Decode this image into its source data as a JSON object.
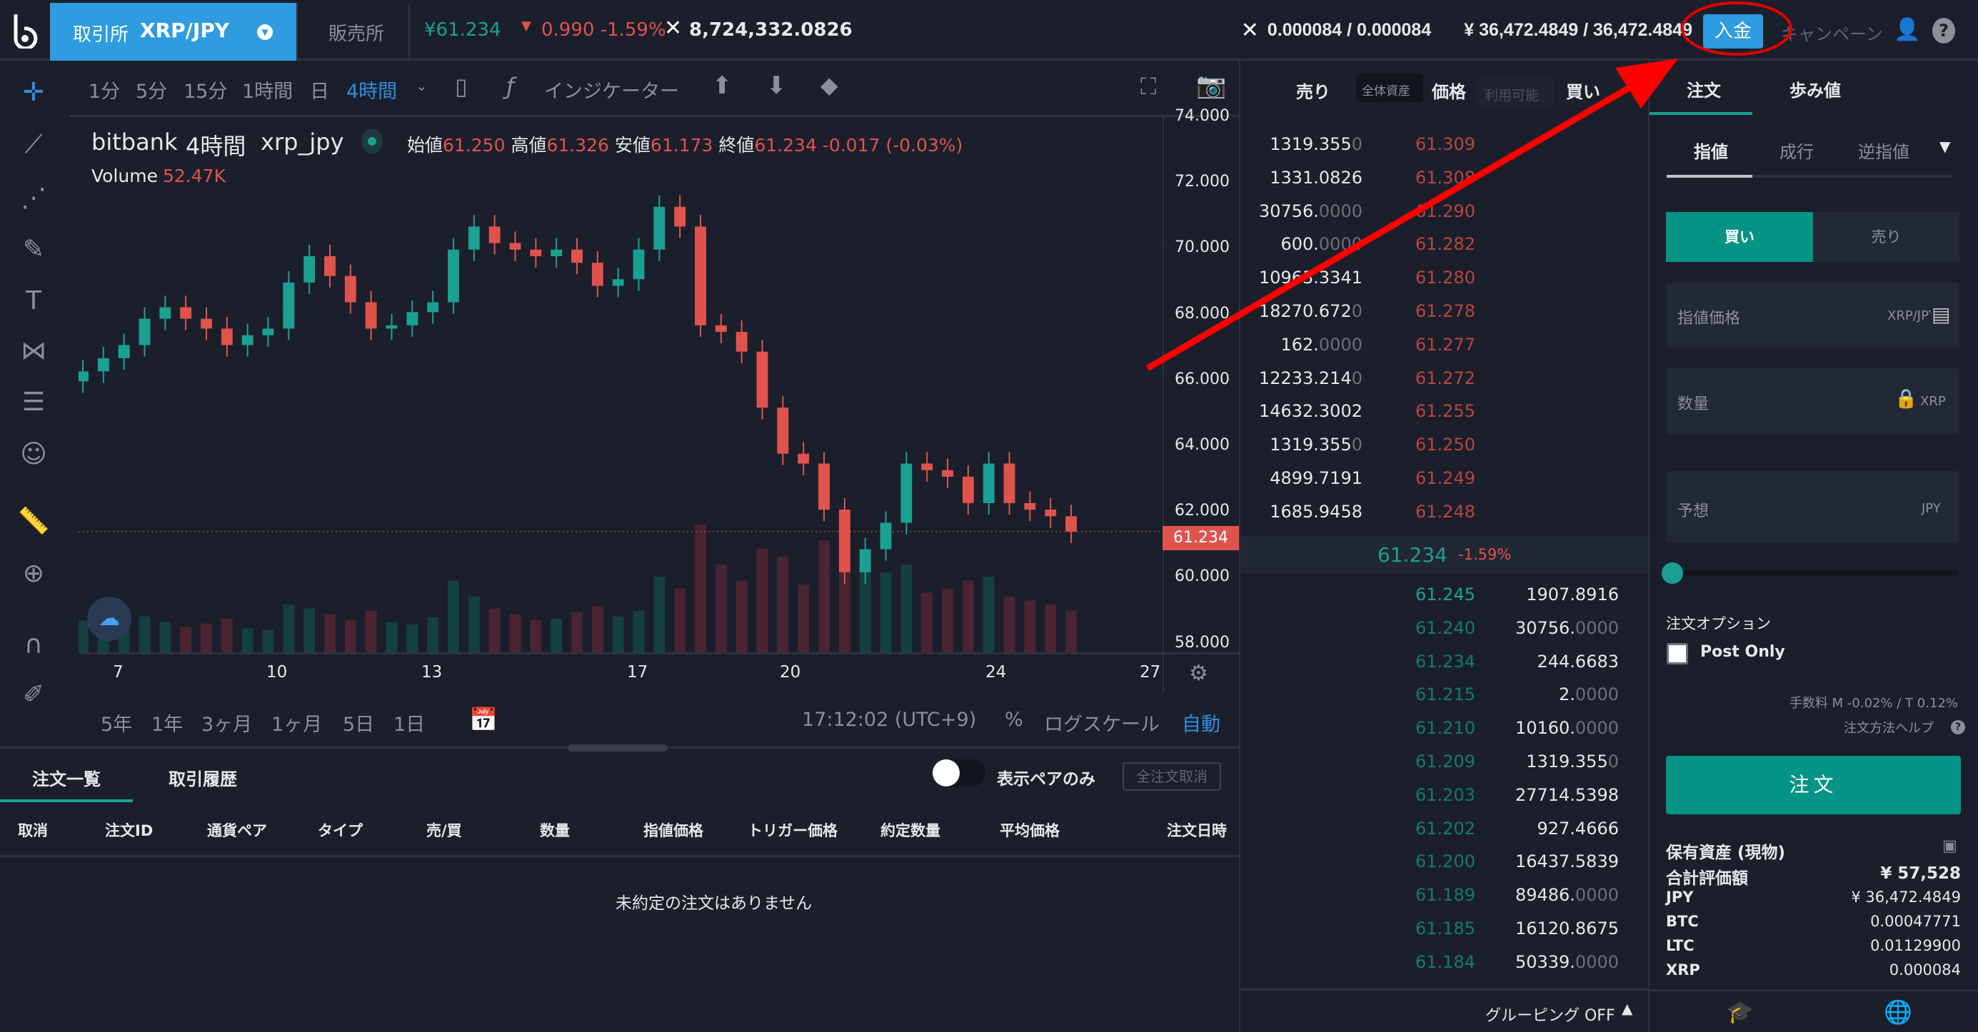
{
  "header": {
    "market_tab": "取引所",
    "pair": "XRP/JPY",
    "retail_tab": "販売所",
    "last_price": "¥61.234",
    "change": "0.990 -1.59%",
    "volume": "8,724,332.0826",
    "xrp_balance": "0.000084 / 0.000084",
    "jpy_balance": "¥ 36,472.4849 / 36,472.4849",
    "deposit_label": "入金",
    "campaign_label": "キャンペーン"
  },
  "toolbar": {
    "intervals": [
      "1分",
      "5分",
      "15分",
      "1時間",
      "日",
      "4時間"
    ],
    "active_interval": "4時間",
    "indicator_label": "インジケーター"
  },
  "chart": {
    "legend_exchange": "bitbank",
    "legend_interval": "4時間",
    "legend_symbol": "xrp_jpy",
    "open_label": "始値",
    "open": "61.250",
    "high_label": "高値",
    "high": "61.326",
    "low_label": "安値",
    "low": "61.173",
    "close_label": "終値",
    "close": "61.234",
    "change": "-0.017 (-0.03%)",
    "volume_label": "Volume",
    "volume": "52.47K",
    "price_ticks": [
      "74.000",
      "72.000",
      "70.000",
      "68.000",
      "66.000",
      "64.000",
      "62.000",
      "60.000",
      "58.000"
    ],
    "current_price_tag": "61.234",
    "date_ticks": [
      "7",
      "10",
      "13",
      "17",
      "20",
      "24",
      "27"
    ],
    "ranges": [
      "5年",
      "1年",
      "3ヶ月",
      "1ヶ月",
      "5日",
      "1日"
    ],
    "clock": "17:12:02 (UTC+9)",
    "percent_label": "%",
    "log_label": "ログスケール",
    "auto_label": "自動",
    "colors": {
      "up": "#1aa193",
      "down": "#e0534d"
    }
  },
  "chart_data": {
    "type": "candlestick",
    "ylim": [
      58,
      74
    ],
    "closes": [
      66.1,
      66.5,
      66.9,
      67.7,
      68.05,
      67.7,
      67.4,
      66.9,
      67.2,
      67.4,
      68.8,
      69.6,
      69.0,
      68.2,
      67.4,
      67.5,
      67.9,
      68.2,
      69.8,
      70.5,
      70.0,
      69.8,
      69.6,
      69.8,
      69.4,
      68.7,
      68.9,
      69.8,
      71.1,
      70.5,
      67.5,
      67.3,
      66.7,
      65.0,
      63.6,
      63.3,
      61.9,
      60.0,
      60.7,
      61.5,
      63.3,
      63.1,
      62.9,
      62.1,
      63.3,
      62.1,
      61.9,
      61.7,
      61.234
    ],
    "volumes_k": [
      40,
      35,
      30,
      45,
      38,
      32,
      36,
      42,
      30,
      28,
      60,
      55,
      48,
      40,
      52,
      38,
      35,
      44,
      90,
      70,
      55,
      48,
      40,
      42,
      50,
      58,
      45,
      52,
      95,
      80,
      160,
      110,
      90,
      130,
      120,
      85,
      140,
      170,
      120,
      100,
      110,
      75,
      80,
      90,
      95,
      70,
      65,
      60,
      52.47
    ]
  },
  "orderbook": {
    "sell_label": "売り",
    "total_chip": "全体資産",
    "price_label": "価格",
    "available_chip": "利用可能",
    "buy_label": "買い",
    "asks": [
      [
        "1319.355",
        "0",
        "61.309"
      ],
      [
        "1331.0826",
        "",
        "61.308"
      ],
      [
        "30756.",
        "0000",
        "61.290"
      ],
      [
        "600.",
        "0000",
        "61.282"
      ],
      [
        "10963.3341",
        "",
        "61.280"
      ],
      [
        "18270.672",
        "0",
        "61.278"
      ],
      [
        "162.",
        "0000",
        "61.277"
      ],
      [
        "12233.214",
        "0",
        "61.272"
      ],
      [
        "14632.3002",
        "",
        "61.255"
      ],
      [
        "1319.355",
        "0",
        "61.250"
      ],
      [
        "4899.7191",
        "",
        "61.249"
      ],
      [
        "1685.9458",
        "",
        "61.248"
      ]
    ],
    "mid_price": "61.234",
    "mid_change": "-1.59%",
    "bids": [
      [
        "61.245",
        "1907.8916",
        ""
      ],
      [
        "61.240",
        "30756.",
        "0000"
      ],
      [
        "61.234",
        "244.6683",
        ""
      ],
      [
        "61.215",
        "2.",
        "0000"
      ],
      [
        "61.210",
        "10160.",
        "0000"
      ],
      [
        "61.209",
        "1319.355",
        "0"
      ],
      [
        "61.203",
        "27714.5398",
        ""
      ],
      [
        "61.202",
        "927.4666",
        ""
      ],
      [
        "61.200",
        "16437.5839",
        ""
      ],
      [
        "61.189",
        "89486.",
        "0000"
      ],
      [
        "61.185",
        "16120.8675",
        ""
      ],
      [
        "61.184",
        "50339.",
        "0000"
      ]
    ],
    "grouping": "グルーピング OFF"
  },
  "order_panel": {
    "tabs": [
      "注文",
      "歩み値"
    ],
    "types": [
      "指値",
      "成行",
      "逆指値"
    ],
    "buy": "買い",
    "sell": "売り",
    "limit_price_placeholder": "指値価格",
    "limit_unit": "XRP/JPY",
    "qty_placeholder": "数量",
    "qty_unit": "XRP",
    "est_placeholder": "予想",
    "est_unit": "JPY",
    "slider_value": 0,
    "options_label": "注文オプション",
    "post_only": "Post Only",
    "fee": "手数料 M -0.02% / T 0.12%",
    "help": "注文方法ヘルプ",
    "submit": "注文",
    "assets_title": "保有資産 (現物)",
    "assets": [
      [
        "合計評価額",
        "¥ 57,528"
      ],
      [
        "JPY",
        "¥ 36,472.4849"
      ],
      [
        "BTC",
        "0.00047771"
      ],
      [
        "LTC",
        "0.01129900"
      ],
      [
        "XRP",
        "0.000084"
      ]
    ]
  },
  "orders": {
    "tabs": [
      "注文一覧",
      "取引履歴"
    ],
    "pair_only": "表示ペアのみ",
    "cancel_all": "全注文取消",
    "columns": [
      "取消",
      "注文ID",
      "通貨ペア",
      "タイプ",
      "売/買",
      "数量",
      "指値価格",
      "トリガー価格",
      "約定数量",
      "平均価格",
      "注文日時"
    ],
    "empty": "未約定の注文はありません"
  }
}
